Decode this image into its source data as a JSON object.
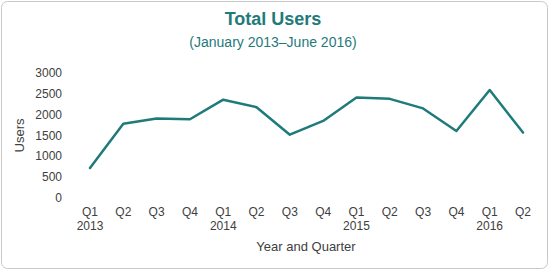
{
  "chart_data": {
    "type": "line",
    "title": "Total Users",
    "subtitle": "(January 2013–June 2016)",
    "x_label": "Year and Quarter",
    "y_label": "Users",
    "categories": [
      "Q1 2013",
      "Q2",
      "Q3",
      "Q4",
      "Q1 2014",
      "Q2",
      "Q3",
      "Q4",
      "Q1 2015",
      "Q2",
      "Q3",
      "Q4",
      "Q1 2016",
      "Q2"
    ],
    "values": [
      720,
      1780,
      1910,
      1890,
      2360,
      2180,
      1520,
      1850,
      2410,
      2380,
      2150,
      1610,
      2590,
      1570
    ],
    "color": "#1f7a7a",
    "ylim": [
      0,
      3000
    ],
    "yticks": [
      0,
      500,
      1000,
      1500,
      2000,
      2500,
      3000
    ],
    "grid": false
  }
}
